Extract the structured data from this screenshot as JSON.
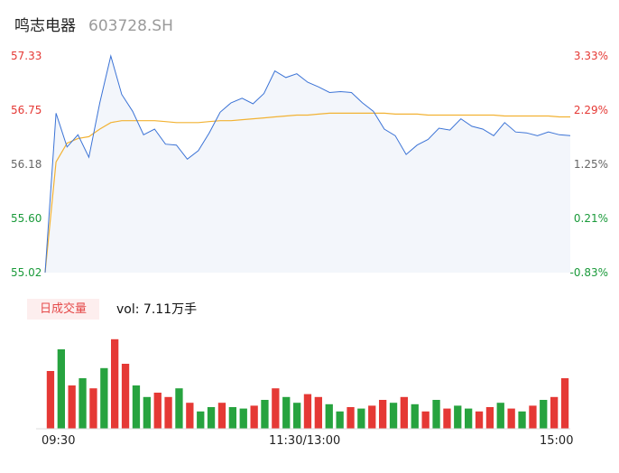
{
  "header": {
    "name": "鸣志电器",
    "code": "603728.SH"
  },
  "price_axis": {
    "left_ticks": [
      "57.33",
      "56.75",
      "56.18",
      "55.60",
      "55.02"
    ],
    "right_ticks": [
      "3.33%",
      "2.29%",
      "1.25%",
      "0.21%",
      "-0.83%"
    ],
    "colors": {
      "up": "#e53935",
      "flat": "#666666",
      "down": "#1a9a3a"
    }
  },
  "volume_panel": {
    "badge": "日成交量",
    "vol_label": "vol: 7.11万手"
  },
  "x_axis": {
    "ticks": [
      "09:30",
      "11:30/13:00",
      "15:00"
    ]
  },
  "colors": {
    "price_line": "#3b73d6",
    "avg_line": "#f2b233",
    "area": "#f3f6fb",
    "vol_up": "#e53935",
    "vol_down": "#27a33f"
  },
  "chart_data": [
    {
      "type": "line",
      "title": "",
      "x": [
        "09:30",
        "09:35",
        "09:40",
        "09:45",
        "09:50",
        "09:55",
        "10:00",
        "10:05",
        "10:10",
        "10:15",
        "10:20",
        "10:25",
        "10:30",
        "10:35",
        "10:40",
        "10:45",
        "10:50",
        "10:55",
        "11:00",
        "11:05",
        "11:10",
        "11:15",
        "11:20",
        "11:25",
        "11:30",
        "13:05",
        "13:10",
        "13:15",
        "13:20",
        "13:25",
        "13:30",
        "13:35",
        "13:40",
        "13:45",
        "13:50",
        "13:55",
        "14:00",
        "14:05",
        "14:10",
        "14:15",
        "14:20",
        "14:25",
        "14:30",
        "14:35",
        "14:40",
        "14:45",
        "14:50",
        "14:55",
        "15:00"
      ],
      "series": [
        {
          "values": [
            55.02,
            56.72,
            56.36,
            56.49,
            56.25,
            56.83,
            57.33,
            56.92,
            56.74,
            56.49,
            56.55,
            56.39,
            56.38,
            56.23,
            56.32,
            56.51,
            56.73,
            56.83,
            56.88,
            56.82,
            56.93,
            57.17,
            57.1,
            57.14,
            57.05,
            57.0,
            56.94,
            56.95,
            56.94,
            56.83,
            56.74,
            56.55,
            56.48,
            56.28,
            56.38,
            56.44,
            56.56,
            56.54,
            56.66,
            56.58,
            56.55,
            56.48,
            56.62,
            56.52,
            56.51,
            56.48,
            56.52,
            56.49,
            56.48
          ]
        },
        {
          "values": [
            55.02,
            56.2,
            56.4,
            56.45,
            56.47,
            56.55,
            56.62,
            56.64,
            56.64,
            56.64,
            56.64,
            56.63,
            56.62,
            56.62,
            56.62,
            56.63,
            56.64,
            56.64,
            56.65,
            56.66,
            56.67,
            56.68,
            56.69,
            56.7,
            56.7,
            56.71,
            56.72,
            56.72,
            56.72,
            56.72,
            56.72,
            56.72,
            56.71,
            56.71,
            56.71,
            56.7,
            56.7,
            56.7,
            56.7,
            56.7,
            56.7,
            56.7,
            56.69,
            56.69,
            56.69,
            56.69,
            56.69,
            56.68,
            56.68
          ]
        }
      ],
      "ylim": [
        55.02,
        57.33
      ]
    },
    {
      "type": "bar",
      "title": "",
      "categories": [
        "09:30",
        "09:35",
        "09:40",
        "09:45",
        "09:50",
        "09:55",
        "10:00",
        "10:05",
        "10:10",
        "10:15",
        "10:20",
        "10:25",
        "10:30",
        "10:35",
        "10:40",
        "10:45",
        "10:50",
        "10:55",
        "11:00",
        "11:05",
        "11:10",
        "11:15",
        "11:20",
        "11:25",
        "11:30",
        "13:05",
        "13:10",
        "13:15",
        "13:20",
        "13:25",
        "13:30",
        "13:35",
        "13:40",
        "13:45",
        "13:50",
        "13:55",
        "14:00",
        "14:05",
        "14:10",
        "14:15",
        "14:20",
        "14:25",
        "14:30",
        "14:35",
        "14:40",
        "14:45",
        "14:50",
        "14:55",
        "15:00"
      ],
      "values": [
        0.4,
        0.55,
        0.3,
        0.35,
        0.28,
        0.42,
        0.62,
        0.45,
        0.3,
        0.22,
        0.25,
        0.22,
        0.28,
        0.18,
        0.12,
        0.15,
        0.18,
        0.15,
        0.14,
        0.16,
        0.2,
        0.28,
        0.22,
        0.18,
        0.24,
        0.22,
        0.17,
        0.12,
        0.15,
        0.14,
        0.16,
        0.2,
        0.18,
        0.22,
        0.17,
        0.12,
        0.2,
        0.14,
        0.16,
        0.14,
        0.12,
        0.15,
        0.18,
        0.14,
        0.12,
        0.16,
        0.2,
        0.22,
        0.35
      ],
      "up": [
        true,
        false,
        true,
        false,
        true,
        false,
        true,
        true,
        false,
        false,
        true,
        true,
        false,
        true,
        false,
        false,
        true,
        false,
        false,
        true,
        false,
        true,
        false,
        false,
        true,
        true,
        false,
        false,
        true,
        false,
        true,
        true,
        false,
        true,
        false,
        true,
        false,
        true,
        false,
        false,
        true,
        true,
        false,
        true,
        false,
        true,
        false,
        true,
        true
      ]
    }
  ]
}
